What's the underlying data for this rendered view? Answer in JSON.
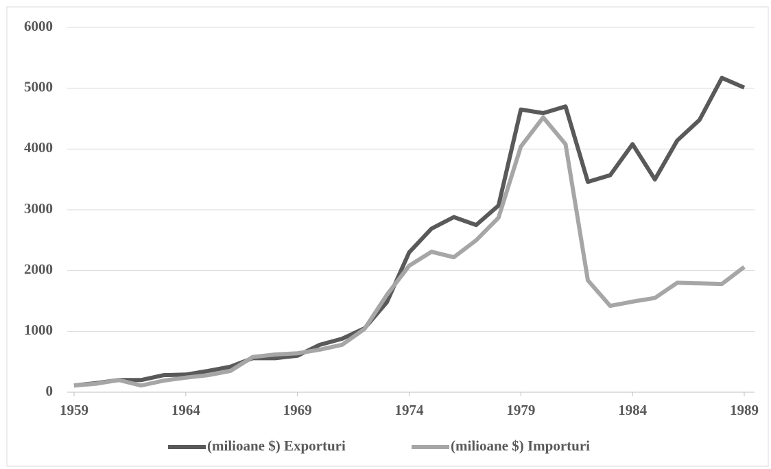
{
  "chart_data": {
    "type": "line",
    "x": [
      1959,
      1960,
      1961,
      1962,
      1963,
      1964,
      1965,
      1966,
      1967,
      1968,
      1969,
      1970,
      1971,
      1972,
      1973,
      1974,
      1975,
      1976,
      1977,
      1978,
      1979,
      1980,
      1981,
      1982,
      1983,
      1984,
      1985,
      1986,
      1987,
      1988,
      1989
    ],
    "series": [
      {
        "name": "(milioane $) Exporturi",
        "color": "#595959",
        "values": [
          110,
          150,
          200,
          200,
          280,
          290,
          350,
          420,
          560,
          560,
          600,
          780,
          880,
          1050,
          1480,
          2300,
          2690,
          2880,
          2750,
          3070,
          4650,
          4590,
          4700,
          3460,
          3570,
          4080,
          3500,
          4140,
          4480,
          5170,
          5010
        ]
      },
      {
        "name": "(milioane $) Importuri",
        "color": "#a6a6a6",
        "values": [
          110,
          140,
          200,
          110,
          190,
          240,
          280,
          350,
          580,
          620,
          640,
          700,
          780,
          1040,
          1600,
          2080,
          2310,
          2220,
          2500,
          2870,
          4040,
          4520,
          4080,
          1840,
          1420,
          1490,
          1550,
          1800,
          1790,
          1780,
          2060
        ]
      }
    ],
    "xlim": [
      1959,
      1989
    ],
    "xticks": [
      1959,
      1964,
      1969,
      1974,
      1979,
      1984,
      1989
    ],
    "ylim": [
      0,
      6000
    ],
    "yticks": [
      0,
      1000,
      2000,
      3000,
      4000,
      5000,
      6000
    ],
    "grid": true,
    "legend": "bottom"
  }
}
